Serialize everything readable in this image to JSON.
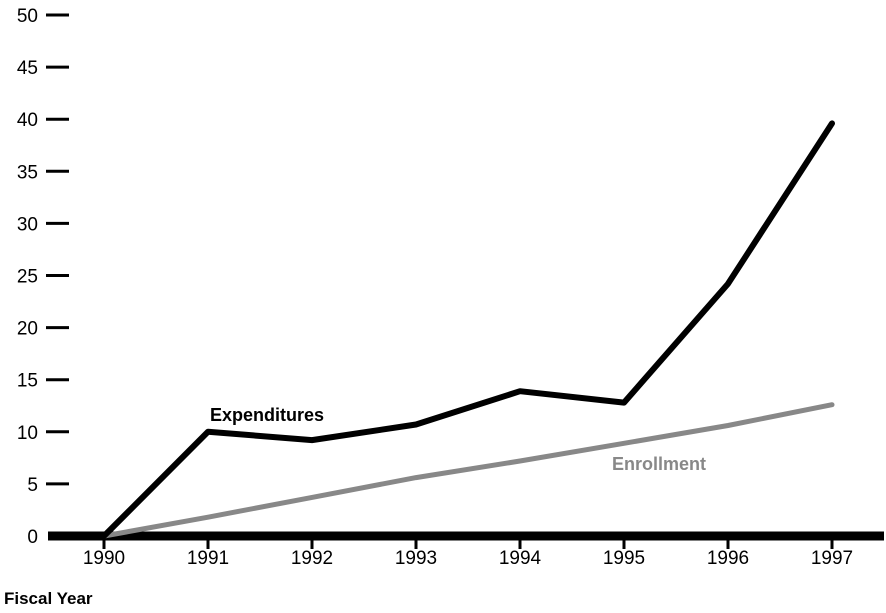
{
  "chart_data": {
    "type": "line",
    "title": "",
    "xlabel": "Fiscal Year",
    "ylabel": "",
    "x": [
      "1990",
      "1991",
      "1992",
      "1993",
      "1994",
      "1995",
      "1996",
      "1997"
    ],
    "y_ticks": [
      "0",
      "5",
      "10",
      "15",
      "20",
      "25",
      "30",
      "35",
      "40",
      "45",
      "50"
    ],
    "ylim": [
      0,
      50
    ],
    "grid": false,
    "legend": "inline labels",
    "series": [
      {
        "name": "Expenditures",
        "color": "#000000",
        "values": [
          0,
          10,
          9.2,
          10.7,
          13.9,
          12.8,
          24.2,
          39.6
        ]
      },
      {
        "name": "Enrollment",
        "color": "#888888",
        "values": [
          0,
          1.8,
          3.7,
          5.6,
          7.2,
          8.9,
          10.6,
          12.6
        ]
      }
    ]
  }
}
